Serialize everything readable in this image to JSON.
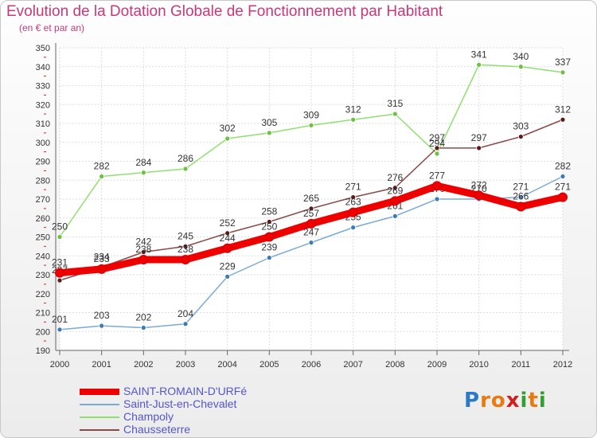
{
  "chart_data": {
    "type": "line",
    "title": "Evolution de la Dotation Globale de Fonctionnement par Habitant",
    "subtitle": "(en € et par an)",
    "xlabel": "",
    "ylabel": "",
    "ylim": [
      190,
      350
    ],
    "yticks": [
      190,
      200,
      210,
      220,
      230,
      240,
      250,
      260,
      270,
      280,
      290,
      300,
      310,
      320,
      330,
      340,
      350
    ],
    "categories": [
      "2000",
      "2001",
      "2002",
      "2003",
      "2004",
      "2005",
      "2006",
      "2007",
      "2008",
      "2009",
      "2010",
      "2011",
      "2012"
    ],
    "grid": true,
    "legend_position": "bottom-left",
    "series": [
      {
        "name": "Champoly",
        "color": "#90e070",
        "marker": "#70c040",
        "values": [
          250,
          282,
          284,
          286,
          302,
          305,
          309,
          312,
          315,
          294,
          341,
          340,
          337
        ],
        "labels": [
          "250",
          "282",
          "284",
          "286",
          "302",
          "305",
          "309",
          "312",
          "315",
          "294",
          "341",
          "340",
          "337"
        ]
      },
      {
        "name": "Saint-Just-en-Chevalet",
        "color": "#7aaad6",
        "marker": "#3a7ab8",
        "values": [
          201,
          203,
          202,
          204,
          229,
          239,
          247,
          255,
          261,
          270,
          270,
          271,
          282
        ],
        "labels": [
          "201",
          "203",
          "202",
          "204",
          "229",
          "239",
          "247",
          "255",
          "261",
          "270",
          "270",
          "271",
          "282"
        ]
      },
      {
        "name": "Chausseterre",
        "color": "#8a4a4a",
        "marker": "#5a1a1a",
        "values": [
          227,
          234,
          242,
          245,
          252,
          258,
          265,
          271,
          276,
          297,
          297,
          303,
          312
        ],
        "labels": [
          "227",
          "234",
          "242",
          "245",
          "252",
          "258",
          "265",
          "271",
          "276",
          "297",
          "297",
          "303",
          "312"
        ]
      },
      {
        "name": "SAINT-ROMAIN-D'URFé",
        "color": "#ee0000",
        "marker": "#ee0000",
        "values": [
          231,
          233,
          238,
          238,
          244,
          250,
          257,
          263,
          269,
          277,
          272,
          266,
          271
        ],
        "labels": [
          "231",
          "233",
          "238",
          "238",
          "244",
          "250",
          "257",
          "263",
          "269",
          "277",
          "272",
          "266",
          "271"
        ]
      }
    ],
    "legend": [
      {
        "name": "SAINT-ROMAIN-D'URFé",
        "color": "#ee0000"
      },
      {
        "name": "Saint-Just-en-Chevalet",
        "color": "#7aaad6"
      },
      {
        "name": "Champoly",
        "color": "#90e070"
      },
      {
        "name": "Chausseterre",
        "color": "#8a4a4a"
      }
    ]
  },
  "logo": {
    "text": "Proxiti",
    "letters": [
      {
        "ch": "P",
        "color": "#2a7ac8"
      },
      {
        "ch": "r",
        "color": "#e87a10"
      },
      {
        "ch": "o",
        "color": "#e87a10"
      },
      {
        "ch": "x",
        "color": "#d02020"
      },
      {
        "ch": "i",
        "color": "#30a030"
      },
      {
        "ch": "t",
        "color": "#e87a10"
      },
      {
        "ch": "i",
        "color": "#30a030"
      }
    ]
  }
}
